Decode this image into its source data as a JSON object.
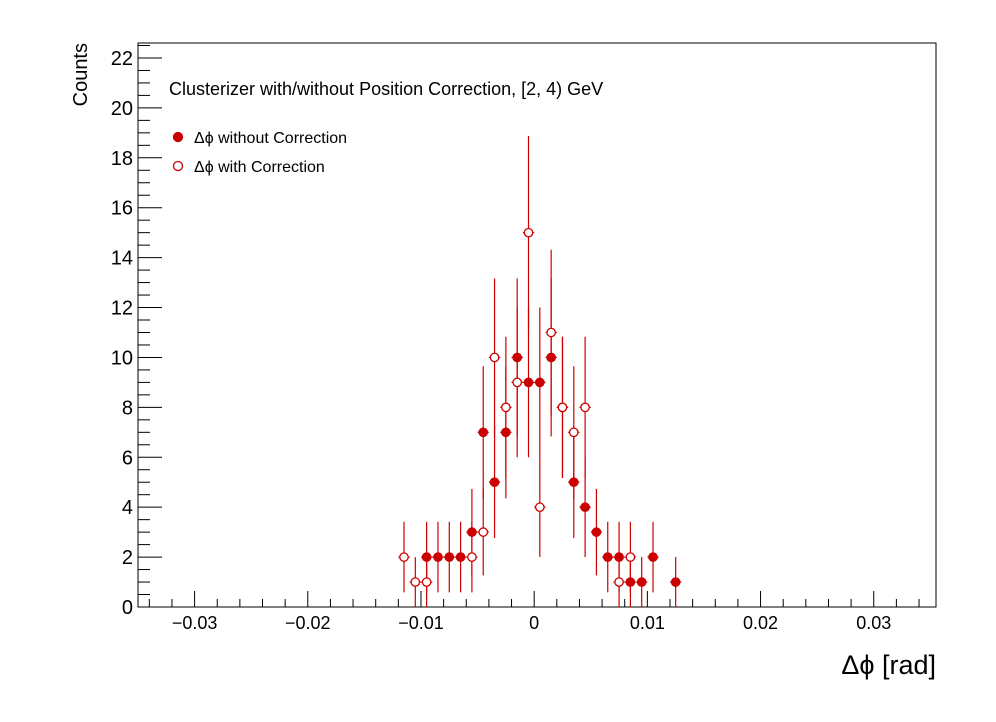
{
  "chart_data": {
    "type": "scatter",
    "title": "Clusterizer with/without Position Correction, [2, 4) GeV",
    "xlabel": "Δϕ  [rad]",
    "ylabel": "Counts",
    "xlim": [
      -0.035,
      0.0355
    ],
    "ylim": [
      0,
      22.6
    ],
    "xticks": [
      -0.03,
      -0.02,
      -0.01,
      0,
      0.01,
      0.02,
      0.03
    ],
    "xtick_labels": [
      "−0.03",
      "−0.02",
      "−0.01",
      "0",
      "0.01",
      "0.02",
      "0.03"
    ],
    "yticks": [
      0,
      2,
      4,
      6,
      8,
      10,
      12,
      14,
      16,
      18,
      20,
      22
    ],
    "ytick_labels": [
      "0",
      "2",
      "4",
      "6",
      "8",
      "10",
      "12",
      "14",
      "16",
      "18",
      "20",
      "22"
    ],
    "legend_position": "top-left",
    "grid": false,
    "series": [
      {
        "name": "Δϕ without Correction",
        "marker": "filled-circle",
        "color": "#cc0000",
        "x": [
          -0.0095,
          -0.0085,
          -0.0075,
          -0.0065,
          -0.0055,
          -0.0045,
          -0.0035,
          -0.0025,
          -0.0015,
          -0.0005,
          0.0005,
          0.0015,
          0.0025,
          0.0035,
          0.0045,
          0.0055,
          0.0065,
          0.0075,
          0.0085,
          0.0095,
          0.0105,
          0.0125
        ],
        "y": [
          2,
          2,
          2,
          2,
          3,
          7,
          5,
          7,
          10,
          9,
          9,
          10,
          8,
          5,
          4,
          3,
          2,
          2,
          1,
          1,
          2,
          1
        ]
      },
      {
        "name": "Δϕ with Correction",
        "marker": "open-circle",
        "color": "#cc0000",
        "x": [
          -0.0115,
          -0.0105,
          -0.0095,
          -0.0055,
          -0.0045,
          -0.0035,
          -0.0025,
          -0.0015,
          -0.0005,
          0.0005,
          0.0015,
          0.0025,
          0.0035,
          0.0045,
          0.0075,
          0.0085
        ],
        "y": [
          2,
          1,
          1,
          2,
          3,
          10,
          8,
          9,
          15,
          4,
          11,
          8,
          7,
          8,
          1,
          2
        ]
      }
    ]
  }
}
